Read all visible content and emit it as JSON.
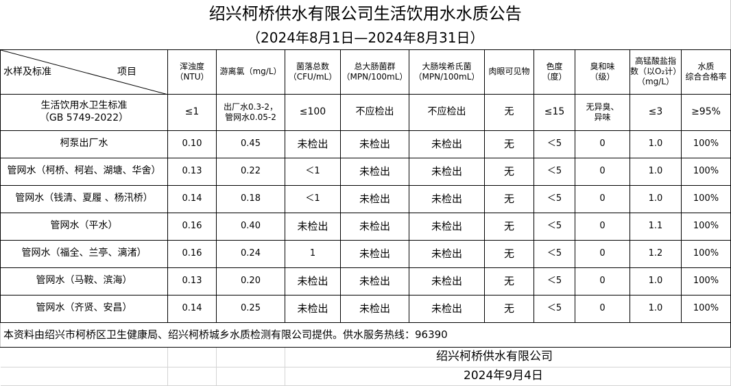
{
  "title": "绍兴柯桥供水有限公司生活饮用水水质公告",
  "subtitle": "（2024年8月1日—2024年8月31日）",
  "header": {
    "corner_left": "水样及标准",
    "corner_right": "项目",
    "columns": [
      [
        "浑浊度",
        "（NTU）"
      ],
      [
        "游离氯（mg/L）"
      ],
      [
        "菌落总数",
        "（CFU/mL）"
      ],
      [
        "总大肠菌群",
        "（MPN/100mL）"
      ],
      [
        "大肠埃希氏菌",
        "（MPN/100mL）"
      ],
      [
        "肉眼可见物"
      ],
      [
        "色度",
        "（度）"
      ],
      [
        "臭和味",
        "（级）"
      ],
      [
        "高锰酸盐指",
        "数（以O₂计）",
        "（mg/L）"
      ],
      [
        "水质",
        "综合合格率"
      ]
    ]
  },
  "standard": {
    "name": [
      "生活饮用水卫生标准",
      "（GB 5749-2022）"
    ],
    "values": [
      [
        "≤1"
      ],
      [
        "出厂水0.3-2，",
        "管网水0.05-2"
      ],
      [
        "≤100"
      ],
      [
        "不应检出"
      ],
      [
        "不应检出"
      ],
      [
        "无"
      ],
      [
        "≤15"
      ],
      [
        "无异臭、",
        "异味"
      ],
      [
        "≤3"
      ],
      [
        "≥95%"
      ]
    ]
  },
  "rows": [
    {
      "name": "柯泵出厂水",
      "values": [
        "0.10",
        "0.45",
        "未检出",
        "未检出",
        "未检出",
        "无",
        "＜5",
        "0",
        "1.0",
        "100%"
      ]
    },
    {
      "name": "管网水（柯桥、柯岩、湖塘、华舍）",
      "values": [
        "0.13",
        "0.22",
        "＜1",
        "未检出",
        "未检出",
        "无",
        "＜5",
        "0",
        "1.0",
        "100%"
      ]
    },
    {
      "name": "管网水（钱清、夏履 、杨汛桥）",
      "values": [
        "0.14",
        "0.18",
        "＜1",
        "未检出",
        "未检出",
        "无",
        "＜5",
        "0",
        "1.0",
        "100%"
      ]
    },
    {
      "name": "管网水（平水）",
      "values": [
        "0.16",
        "0.40",
        "未检出",
        "未检出",
        "未检出",
        "无",
        "＜5",
        "0",
        "1.1",
        "100%"
      ]
    },
    {
      "name": "管网水（福全、兰亭、漓渚）",
      "values": [
        "0.16",
        "0.24",
        "1",
        "未检出",
        "未检出",
        "无",
        "＜5",
        "0",
        "1.2",
        "100%"
      ]
    },
    {
      "name": "管网水（马鞍、滨海）",
      "values": [
        "0.13",
        "0.20",
        "未检出",
        "未检出",
        "未检出",
        "无",
        "＜5",
        "0",
        "1.0",
        "100%"
      ]
    },
    {
      "name": "管网水（齐贤、安昌）",
      "values": [
        "0.14",
        "0.25",
        "未检出",
        "未检出",
        "未检出",
        "无",
        "＜5",
        "0",
        "1.0",
        "100%"
      ]
    }
  ],
  "footnote": "本资料由绍兴市柯桥区卫生健康局、绍兴柯桥城乡水质检测有限公司提供。供水服务热线：96390",
  "company": "绍兴柯桥供水有限公司",
  "date": "2024年9月4日"
}
